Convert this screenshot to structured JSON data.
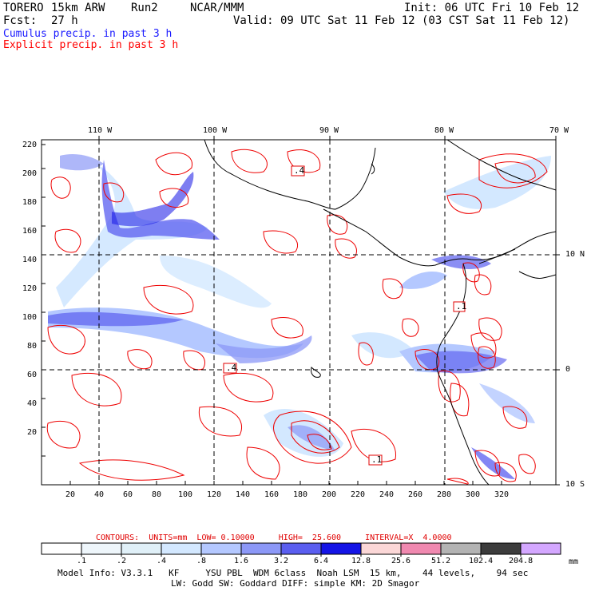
{
  "header": {
    "model": "TORERO",
    "resolution": "15km ARW",
    "run": "Run2",
    "org": "NCAR/MMM",
    "init": "Init: 06 UTC Fri 10 Feb 12",
    "fcst_label": "Fcst:",
    "fcst_value": "27 h",
    "valid": "Valid: 09 UTC Sat 11 Feb 12 (03 CST Sat 11 Feb 12)",
    "line_cumulus": "Cumulus precip. in past 3 h",
    "line_explicit": "Explicit precip. in past 3 h"
  },
  "map": {
    "lon_labels": [
      "110 W",
      "100 W",
      "90 W",
      "80 W",
      "70 W"
    ],
    "lat_labels": [
      "10 N",
      "0",
      "10 S"
    ],
    "y_ticks": [
      "220",
      "200",
      "180",
      "160",
      "140",
      "120",
      "100",
      "80",
      "60",
      "40",
      "20"
    ],
    "x_ticks": [
      "20",
      "40",
      "60",
      "80",
      "100",
      "120",
      "140",
      "160",
      "180",
      "200",
      "220",
      "240",
      "260",
      "280",
      "300",
      "320"
    ],
    "box_labels": [
      ".4",
      ".4",
      ".1",
      ".1"
    ]
  },
  "contours": {
    "text": "CONTOURS:  UNITS=mm  LOW= 0.10000     HIGH=  25.600     INTERVAL=X  4.0000"
  },
  "colorbar": {
    "labels": [
      ".1",
      ".2",
      ".4",
      ".8",
      "1.6",
      "3.2",
      "6.4",
      "12.8",
      "25.6",
      "51.2",
      "102.4",
      "204.8"
    ],
    "unit": "mm",
    "colors": [
      "#ffffff",
      "#eef6fb",
      "#e0f0f8",
      "#d3e8ff",
      "#b4c8ff",
      "#8c98f7",
      "#5a5ef0",
      "#1414e6",
      "#fbd7d7",
      "#f089b0",
      "#b3b3b3",
      "#3c3c3c",
      "#d4a7ff"
    ]
  },
  "footer": {
    "line1": "Model Info: V3.3.1   KF     YSU PBL  WDM 6class  Noah LSM  15 km,    44 levels,    94 sec",
    "line2": "LW: Godd SW: Goddard DIFF: simple KM: 2D Smagor"
  }
}
